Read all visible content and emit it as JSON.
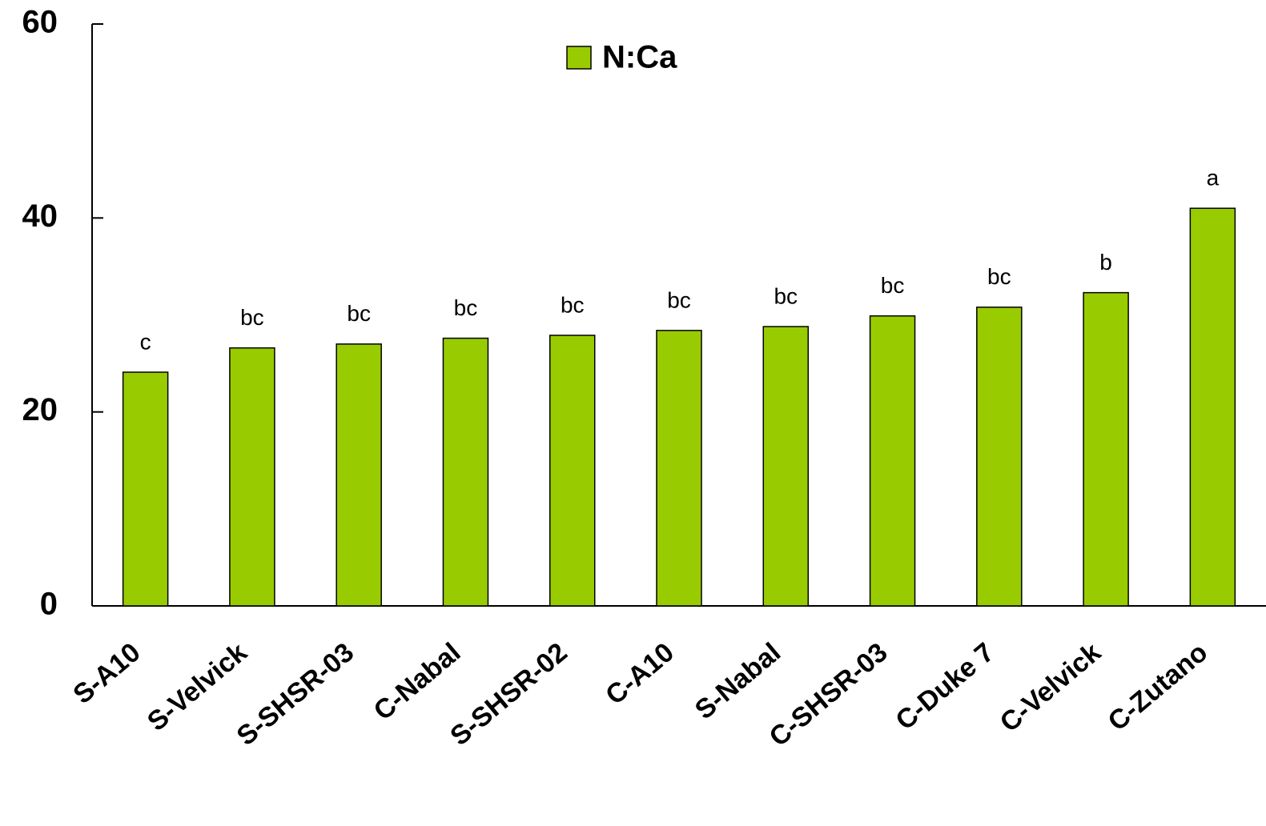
{
  "chart_data": {
    "type": "bar",
    "series": [
      {
        "name": "N:Ca",
        "color": "#99cc00",
        "values": [
          24.1,
          26.6,
          27.0,
          27.6,
          27.9,
          28.4,
          28.8,
          29.9,
          30.8,
          32.3,
          41.0
        ]
      }
    ],
    "categories": [
      "S-A10",
      "S-Velvick",
      "S-SHSR-03",
      "C-Nabal",
      "S-SHSR-02",
      "C-A10",
      "S-Nabal",
      "C-SHSR-03",
      "C-Duke 7",
      "C-Velvick",
      "C-Zutano"
    ],
    "annotations": [
      "c",
      "bc",
      "bc",
      "bc",
      "bc",
      "bc",
      "bc",
      "bc",
      "bc",
      "b",
      "a"
    ],
    "ylim": [
      0,
      60
    ],
    "yticks": [
      0,
      20,
      40,
      60
    ],
    "grid": false
  }
}
